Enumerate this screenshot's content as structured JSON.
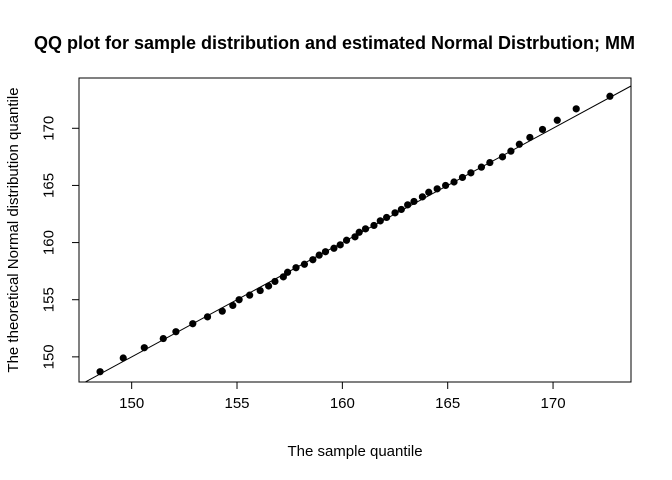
{
  "chart_data": {
    "type": "scatter",
    "title": "QQ plot for sample distribution and estimated Normal Distrbution; MM",
    "xlabel": "The sample quantile",
    "ylabel": "The theoretical Normal distribution quantile",
    "xlim": [
      147.5,
      173.7
    ],
    "ylim": [
      147.8,
      174.4
    ],
    "x_ticks": [
      150,
      155,
      160,
      165,
      170
    ],
    "x_tick_labels": [
      "150",
      "155",
      "160",
      "165",
      "170"
    ],
    "y_ticks": [
      150,
      155,
      160,
      165,
      170
    ],
    "y_tick_labels": [
      "150",
      "155",
      "160",
      "165",
      "170"
    ],
    "grid": false,
    "reference_line": {
      "intercept": 0,
      "slope": 1
    },
    "series": [
      {
        "x": [
          148.5,
          149.6,
          150.6,
          151.5,
          152.1,
          152.9,
          153.6,
          154.3,
          154.8,
          155.1,
          155.6,
          156.1,
          156.5,
          156.8,
          157.2,
          157.4,
          157.8,
          158.2,
          158.6,
          158.9,
          159.2,
          159.6,
          159.9,
          160.2,
          160.6,
          160.8,
          161.1,
          161.5,
          161.8,
          162.1,
          162.5,
          162.8,
          163.1,
          163.4,
          163.8,
          164.1,
          164.5,
          164.9,
          165.3,
          165.7,
          166.1,
          166.6,
          167.0,
          167.6,
          168.0,
          168.4,
          168.9,
          169.5,
          170.2,
          171.1,
          172.7
        ],
        "y": [
          148.7,
          149.9,
          150.8,
          151.6,
          152.2,
          152.9,
          153.5,
          154.0,
          154.5,
          155.0,
          155.4,
          155.8,
          156.2,
          156.6,
          157.0,
          157.4,
          157.8,
          158.1,
          158.5,
          158.9,
          159.2,
          159.5,
          159.8,
          160.2,
          160.5,
          160.9,
          161.2,
          161.5,
          161.9,
          162.2,
          162.6,
          162.9,
          163.3,
          163.6,
          164.0,
          164.4,
          164.7,
          165.0,
          165.3,
          165.7,
          166.1,
          166.6,
          167.0,
          167.5,
          168.0,
          168.6,
          169.2,
          169.9,
          170.7,
          171.7,
          172.8
        ]
      }
    ]
  }
}
